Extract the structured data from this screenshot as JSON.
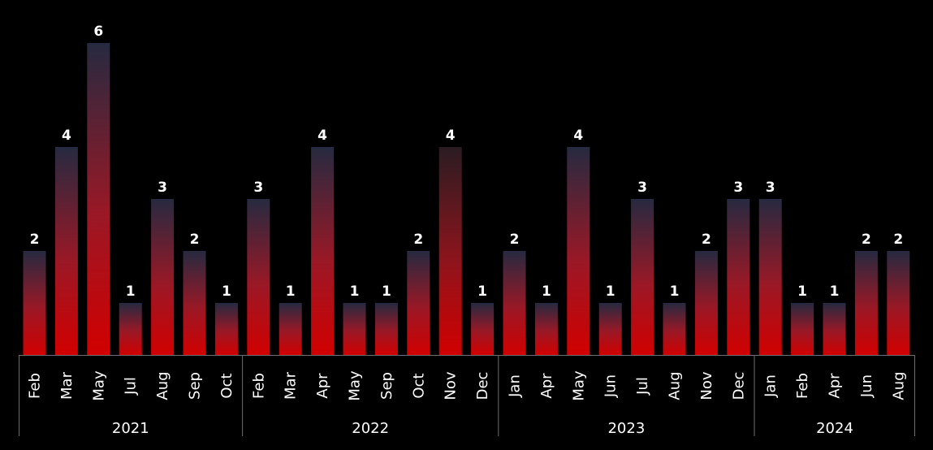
{
  "chart_data": {
    "type": "bar",
    "title": "",
    "xlabel": "",
    "ylabel": "",
    "ylim": [
      0,
      6
    ],
    "grid": false,
    "legend": "none",
    "colors": {
      "bar_bottom": "#d10000",
      "bar_mid": "#8e1c2a",
      "bar_top": "#262a40",
      "nov_top": "#2a1c22",
      "background": "#000000",
      "text": "#ffffff",
      "axis": "#6e6e6e"
    },
    "groups": [
      {
        "year": "2021",
        "categories": [
          "Feb",
          "Mar",
          "May",
          "Jul",
          "Aug",
          "Sep",
          "Oct"
        ],
        "values": [
          2,
          4,
          6,
          1,
          3,
          2,
          1
        ]
      },
      {
        "year": "2022",
        "categories": [
          "Feb",
          "Mar",
          "Apr",
          "May",
          "Sep",
          "Oct",
          "Nov",
          "Dec"
        ],
        "values": [
          3,
          1,
          4,
          1,
          1,
          2,
          4,
          1
        ]
      },
      {
        "year": "2023",
        "categories": [
          "Jan",
          "Apr",
          "May",
          "Jun",
          "Jul",
          "Aug",
          "Nov",
          "Dec"
        ],
        "values": [
          2,
          1,
          4,
          1,
          3,
          1,
          2,
          3
        ]
      },
      {
        "year": "2024",
        "categories": [
          "Jan",
          "Feb",
          "Apr",
          "Jun",
          "Aug"
        ],
        "values": [
          3,
          1,
          1,
          2,
          2
        ]
      }
    ]
  }
}
